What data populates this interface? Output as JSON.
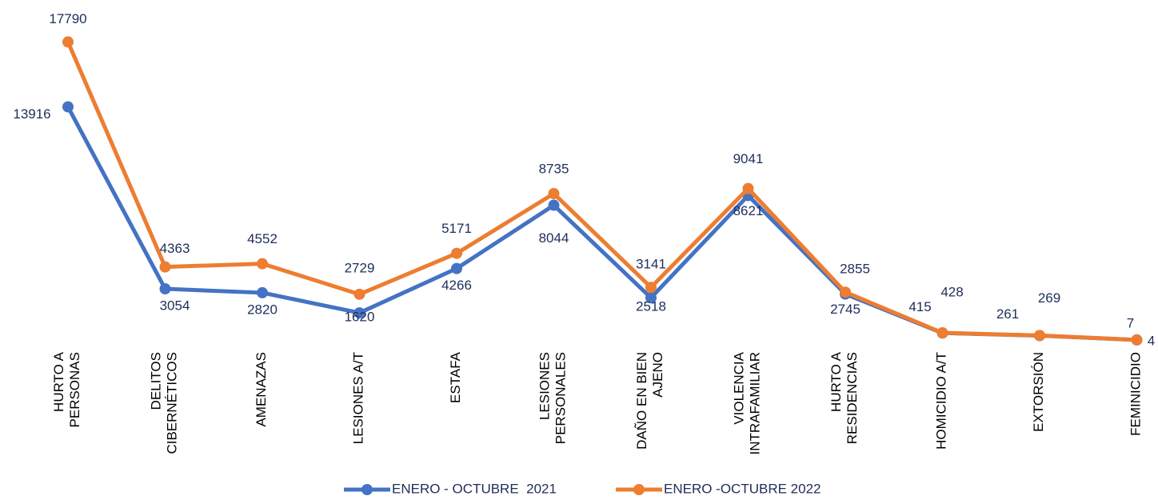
{
  "chart_data": {
    "type": "line",
    "categories": [
      "HURTO A\nPERSONAS",
      "DELITOS\nCIBERNÉTICOS",
      "AMENAZAS",
      "LESIONES A/T",
      "ESTAFA",
      "LESIONES\nPERSONALES",
      "DAÑO EN BIEN\nAJENO",
      "VIOLENCIA\nINTRAFAMILIAR",
      "HURTO A\nRESIDENCIAS",
      "HOMICIDIO A/T",
      "EXTORSIÓN",
      "FEMINICIDIO"
    ],
    "series": [
      {
        "name": "ENERO - OCTUBRE  2021",
        "color": "#4472c4",
        "values": [
          13916,
          3054,
          2820,
          1620,
          4266,
          8044,
          2518,
          8621,
          2745,
          415,
          261,
          4
        ]
      },
      {
        "name": "ENERO -OCTUBRE 2022",
        "color": "#ed7d31",
        "values": [
          17790,
          4363,
          4552,
          2729,
          5171,
          8735,
          3141,
          9041,
          2855,
          428,
          269,
          7
        ]
      }
    ],
    "ylim": [
      0,
      18000
    ]
  }
}
